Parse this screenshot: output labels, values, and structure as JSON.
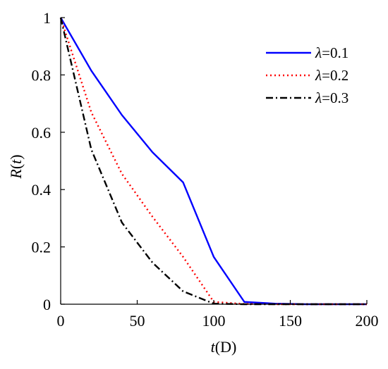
{
  "chart_data": {
    "type": "line",
    "xlabel": {
      "var": "t",
      "unit": "(D)"
    },
    "ylabel": {
      "var": "R",
      "paren_open": "(",
      "arg": "t",
      "paren_close": ")"
    },
    "xlim": [
      0,
      200
    ],
    "ylim": [
      0,
      1
    ],
    "xticks": [
      0,
      50,
      100,
      150,
      200
    ],
    "yticks": [
      0,
      0.2,
      0.4,
      0.6,
      0.8,
      1
    ],
    "xtick_labels": [
      "0",
      "50",
      "100",
      "150",
      "200"
    ],
    "ytick_labels": [
      "0",
      "0.2",
      "0.4",
      "0.6",
      "0.8",
      "1"
    ],
    "grid": false,
    "legend_position": "top-right",
    "series": [
      {
        "name": "λ=0.1",
        "symbol": "λ",
        "value_text": "=0.1",
        "color": "#0000ff",
        "style": "solid",
        "x": [
          0,
          20,
          40,
          60,
          80,
          100,
          120,
          140,
          160,
          180,
          200
        ],
        "y": [
          1.0,
          0.815,
          0.66,
          0.53,
          0.425,
          0.165,
          0.008,
          0.002,
          0.0,
          0.0,
          0.0
        ]
      },
      {
        "name": "λ=0.2",
        "symbol": "λ",
        "value_text": "=0.2",
        "color": "#ff0000",
        "style": "dotted",
        "x": [
          0,
          20,
          40,
          60,
          80,
          100,
          120,
          140,
          160,
          180,
          200
        ],
        "y": [
          1.0,
          0.67,
          0.455,
          0.305,
          0.165,
          0.008,
          0.001,
          0.0,
          0.0,
          0.0,
          0.0
        ]
      },
      {
        "name": "λ=0.3",
        "symbol": "λ",
        "value_text": "=0.3",
        "color": "#000000",
        "style": "dashdot",
        "x": [
          0,
          20,
          40,
          60,
          80,
          100,
          120,
          140,
          160,
          180,
          200
        ],
        "y": [
          1.0,
          0.54,
          0.285,
          0.145,
          0.045,
          0.002,
          0.0,
          0.0,
          0.0,
          0.0,
          0.0
        ]
      }
    ]
  }
}
